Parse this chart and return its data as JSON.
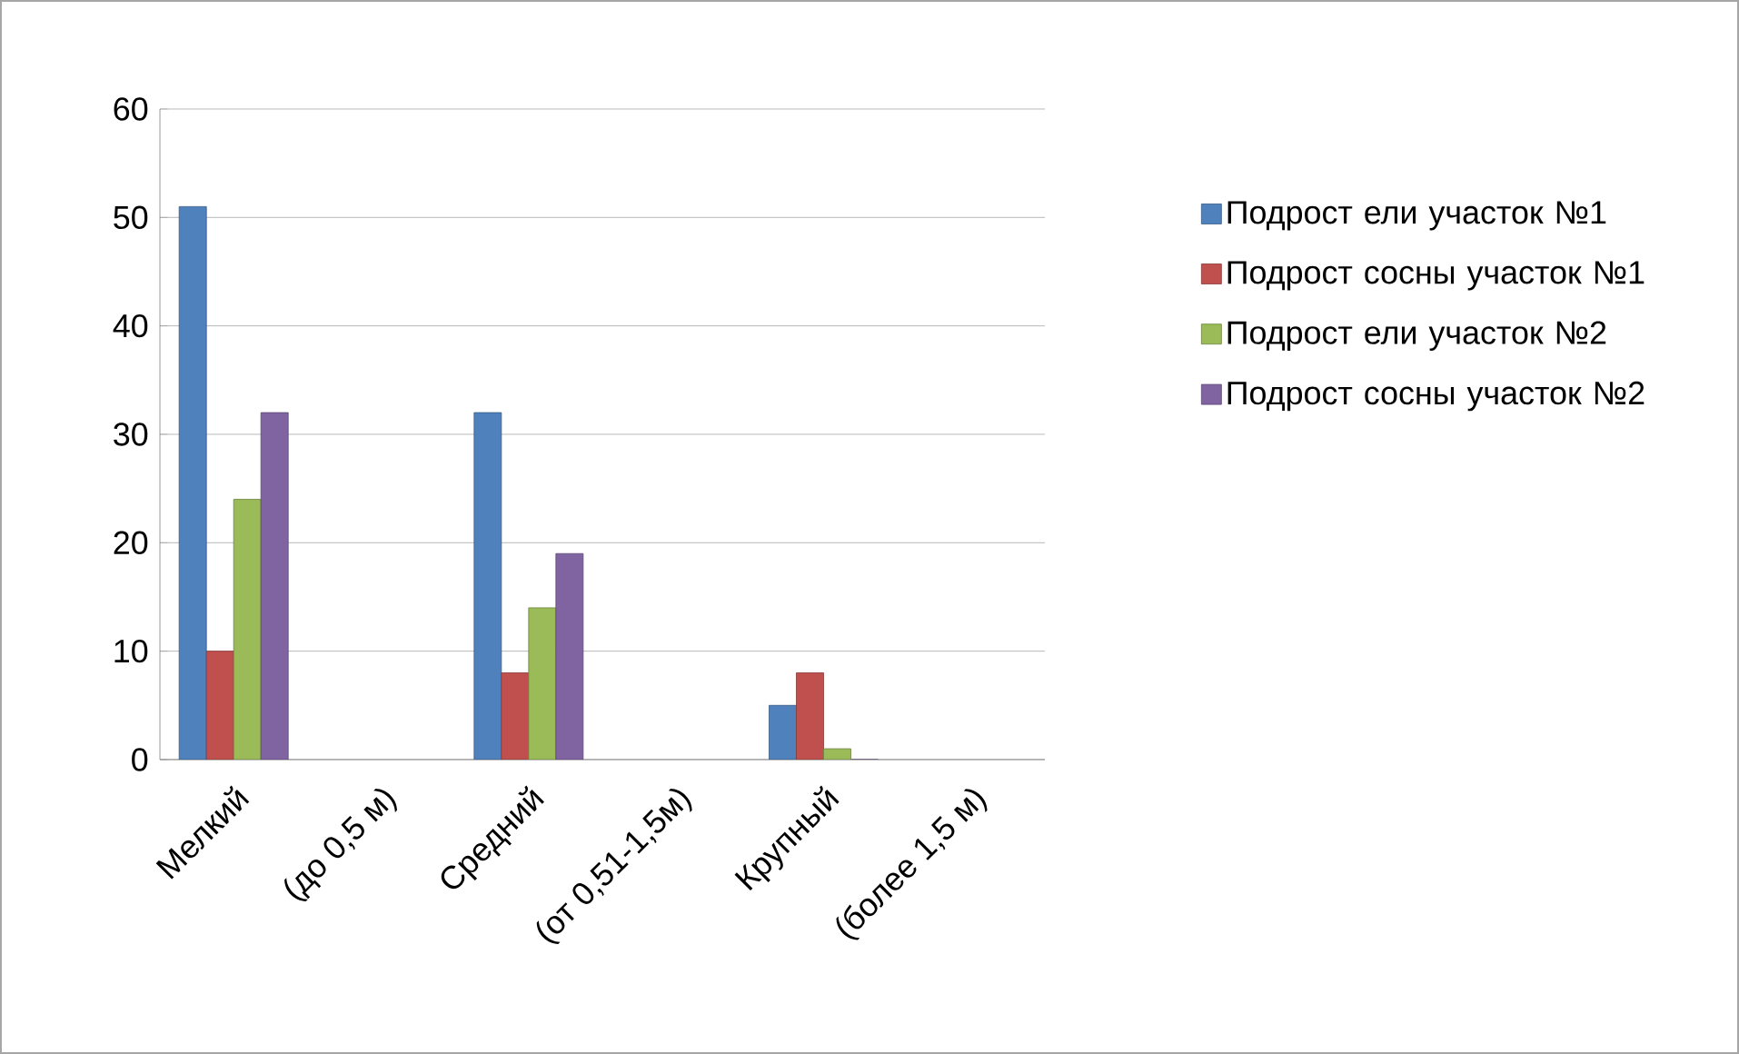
{
  "chart_data": {
    "type": "bar",
    "categories": [
      "Мелкий",
      "(до 0,5 м)",
      "Средний",
      "(от 0,51-1,5м)",
      "Крупный",
      "(более 1,5 м)"
    ],
    "series": [
      {
        "name": "Подрост ели участок №1",
        "color": "#4f81bd",
        "values": [
          51,
          null,
          32,
          null,
          5,
          null
        ]
      },
      {
        "name": "Подрост сосны участок №1",
        "color": "#c0504d",
        "values": [
          10,
          null,
          8,
          null,
          8,
          null
        ]
      },
      {
        "name": "Подрост ели участок №2",
        "color": "#9bbb59",
        "values": [
          24,
          null,
          14,
          null,
          1,
          null
        ]
      },
      {
        "name": "Подрост сосны участок №2",
        "color": "#8064a2",
        "values": [
          32,
          null,
          19,
          null,
          0,
          null
        ]
      }
    ],
    "ylim": [
      0,
      60
    ],
    "yticks": [
      0,
      10,
      20,
      30,
      40,
      50,
      60
    ],
    "grid": "y",
    "legend": "right"
  }
}
